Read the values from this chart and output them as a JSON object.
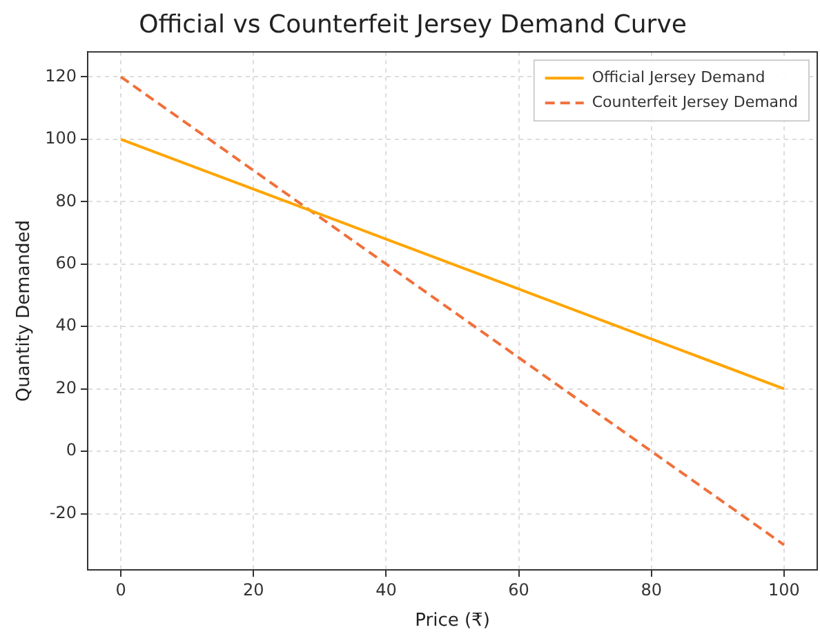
{
  "chart_data": {
    "type": "line",
    "title": "Official vs Counterfeit Jersey Demand Curve",
    "xlabel": "Price (₹)",
    "ylabel": "Quantity Demanded",
    "x": [
      0,
      20,
      40,
      60,
      80,
      100
    ],
    "series": [
      {
        "name": "Official Jersey Demand",
        "color": "#ffa500",
        "values": [
          100,
          84,
          68,
          52,
          36,
          20
        ],
        "line_style": "solid"
      },
      {
        "name": "Counterfeit Jersey Demand",
        "color": "#f0703a",
        "values": [
          120,
          90,
          60,
          30,
          0,
          -30
        ],
        "line_style": "dashed"
      }
    ],
    "xlim": [
      -5,
      105
    ],
    "xticks": [
      0,
      20,
      40,
      60,
      80,
      100
    ],
    "ylim": [
      -38,
      128
    ],
    "yticks": [
      -20,
      0,
      20,
      40,
      60,
      80,
      100,
      120
    ],
    "grid": true,
    "legend": "top right",
    "marker": "none"
  }
}
